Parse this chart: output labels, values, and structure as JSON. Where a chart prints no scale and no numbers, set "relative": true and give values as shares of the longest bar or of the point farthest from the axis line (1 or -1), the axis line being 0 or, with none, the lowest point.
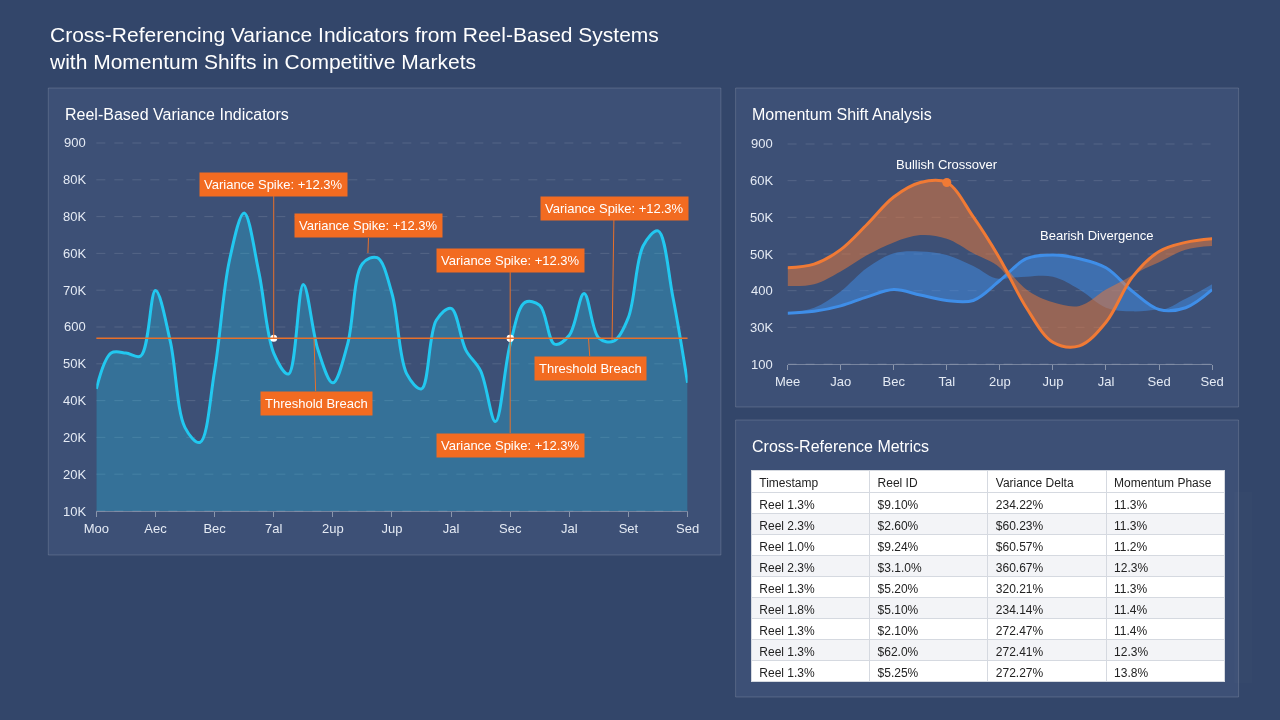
{
  "chart_data": [
    {
      "type": "other",
      "title": "Cross-Referencing Variance Indicators from Reel-Based Systems\nwith Momentum Shifts in Competitive Markets"
    },
    {
      "type": "area",
      "title": "Reel-Based Variance Indicators",
      "relative": true,
      "grid": "y",
      "categories": [
        "Moo",
        null,
        null,
        null,
        "Aec",
        null,
        null,
        null,
        "Bec",
        null,
        null,
        null,
        "7al",
        null,
        null,
        null,
        "2up",
        null,
        null,
        null,
        "Jup",
        null,
        null,
        null,
        "Jal",
        null,
        null,
        null,
        "Sec",
        null,
        null,
        null,
        "Jal",
        null,
        null,
        null,
        "Set",
        null,
        null,
        null,
        "Sed"
      ],
      "series": [
        {
          "color": "#22c8f0",
          "values": [
            0.41,
            0.53,
            0.53,
            0.52,
            0.74,
            0.57,
            0.28,
            0.23,
            0.47,
            0.84,
            1,
            0.8,
            0.53,
            0.46,
            0.76,
            0.54,
            0.43,
            0.56,
            0.83,
            0.85,
            0.73,
            0.46,
            0.41,
            0.64,
            0.68,
            0.54,
            0.47,
            0.3,
            0.56,
            0.7,
            0.69,
            0.56,
            0.59,
            0.73,
            0.58,
            0.57,
            0.65,
            0.89,
            0.94,
            0.72,
            0.43
          ]
        }
      ],
      "ref_lines": [
        {
          "axis": "y",
          "value": 0.58,
          "color": "#e8702a"
        }
      ],
      "annotations": [
        {
          "text": "Variance Spike: +12.3%",
          "x": "7al",
          "y": 0.58
        },
        "Variance Spike: +12.3%",
        {
          "text": "Variance Spike: +12.3%",
          "x": "Sec",
          "y": 0.58
        },
        {
          "text": "Variance Spike: +12.3%",
          "x": "Sec",
          "y": 0.58
        },
        "Variance Spike: +12.3%",
        "Threshold Breach",
        "Threshold Breach",
        "900",
        "80K",
        "80K",
        "60K",
        "70K",
        "600",
        "50K",
        "40K",
        "20K",
        "20K",
        "10K"
      ]
    },
    {
      "type": "line",
      "title": "Momentum Shift Analysis",
      "relative": true,
      "grid": "y",
      "categories": [
        "Mee",
        null,
        "Jao",
        null,
        "Bec",
        null,
        "Tal",
        null,
        "2up",
        null,
        "Jup",
        null,
        "Jal",
        null,
        "Sed",
        null,
        "Sed"
      ],
      "series": [
        {
          "color": "#3f8ee8",
          "values": [
            0.28,
            0.29,
            0.32,
            0.37,
            0.41,
            0.38,
            0.35,
            0.35,
            0.46,
            0.58,
            0.6,
            0.58,
            0.53,
            0.4,
            0.3,
            0.31,
            0.41
          ],
          "lower": [
            0.28,
            0.29,
            0.32,
            0.37,
            0.41,
            0.38,
            0.35,
            0.35,
            0.46,
            0.48,
            0.48,
            0.41,
            0.31,
            0.29,
            0.3,
            0.31,
            0.41
          ],
          "upper": [
            0.28,
            0.31,
            0.4,
            0.53,
            0.61,
            0.62,
            0.6,
            0.54,
            0.47,
            0.58,
            0.6,
            0.58,
            0.53,
            0.4,
            0.3,
            0.36,
            0.44
          ]
        },
        {
          "color": "#f07a35",
          "values": [
            0.53,
            0.55,
            0.63,
            0.77,
            0.92,
            1,
            1,
            0.81,
            0.58,
            0.31,
            0.12,
            0.1,
            0.23,
            0.48,
            0.62,
            0.67,
            0.69
          ],
          "lower": [
            0.43,
            0.44,
            0.51,
            0.6,
            0.67,
            0.71,
            0.69,
            0.61,
            0.53,
            0.31,
            0.12,
            0.1,
            0.23,
            0.48,
            0.56,
            0.63,
            0.65
          ],
          "upper": [
            0.53,
            0.55,
            0.63,
            0.77,
            0.92,
            1,
            1,
            0.81,
            0.58,
            0.41,
            0.34,
            0.32,
            0.41,
            0.49,
            0.62,
            0.67,
            0.69
          ]
        }
      ],
      "annotations": [
        {
          "text": "Bullish Crossover",
          "x": "Tal",
          "y": 1
        },
        "Bearish Divergence",
        "900",
        "60K",
        "50K",
        "50K",
        "400",
        "30K",
        "100"
      ]
    },
    {
      "type": "other",
      "title": "Cross-Reference Metrics",
      "categories": [
        "Timestamp",
        "Reel ID",
        "Variance Delta",
        "Momentum Phase"
      ],
      "cell_labels": [
        [
          "Reel 1.3%",
          "$9.10%",
          "234.22%",
          "11.3%"
        ],
        [
          "Reel 2.3%",
          "$2.60%",
          "$60.23%",
          "11.3%"
        ],
        [
          "Reel 1.0%",
          "$9.24%",
          "$60.57%",
          "11.2%"
        ],
        [
          "Reel 2.3%",
          "$3.1.0%",
          "360.67%",
          "12.3%"
        ],
        [
          "Reel 1.3%",
          "$5.20%",
          "320.21%",
          "11.3%"
        ],
        [
          "Reel 1.8%",
          "$5.10%",
          "234.14%",
          "11.4%"
        ],
        [
          "Reel 1.3%",
          "$2.10%",
          "272.47%",
          "11.4%"
        ],
        [
          "Reel 1.3%",
          "$62.0%",
          "272.41%",
          "12.3%"
        ],
        [
          "Reel 1.3%",
          "$5.25%",
          "272.27%",
          "13.8%"
        ]
      ]
    }
  ]
}
